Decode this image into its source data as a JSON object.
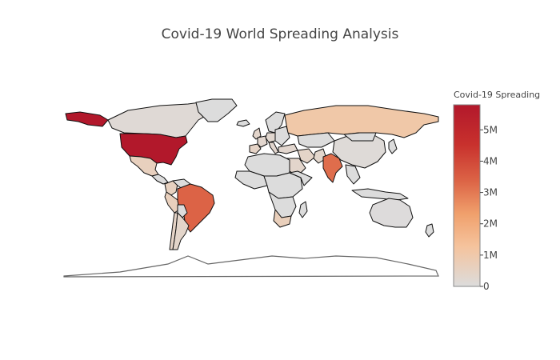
{
  "chart": {
    "title": "Covid-19 World Spreading Analysis"
  },
  "colorbar": {
    "title": "Covid-19 Spreading",
    "ticks": [
      {
        "label": "0",
        "value": 0
      },
      {
        "label": "1M",
        "value": 1000000
      },
      {
        "label": "2M",
        "value": 2000000
      },
      {
        "label": "3M",
        "value": 3000000
      },
      {
        "label": "4M",
        "value": 4000000
      },
      {
        "label": "5M",
        "value": 5000000
      }
    ],
    "scale": [
      "#dcdcdc",
      "#f5c39d",
      "#f0a06c",
      "#dc6446",
      "#c8312d",
      "#b2182b"
    ],
    "min": 0,
    "max": 5800000
  },
  "chart_data": {
    "type": "choropleth",
    "title": "Covid-19 World Spreading Analysis",
    "colorbar_title": "Covid-19 Spreading",
    "range": [
      0,
      5800000
    ],
    "locations": [
      {
        "name": "United States",
        "value": 5800000
      },
      {
        "name": "Brazil",
        "value": 3500000
      },
      {
        "name": "India",
        "value": 3300000
      },
      {
        "name": "Russia",
        "value": 950000
      },
      {
        "name": "South Africa",
        "value": 600000
      },
      {
        "name": "Peru",
        "value": 580000
      },
      {
        "name": "Mexico",
        "value": 560000
      },
      {
        "name": "Colombia",
        "value": 520000
      },
      {
        "name": "Chile",
        "value": 400000
      },
      {
        "name": "Spain",
        "value": 400000
      },
      {
        "name": "Iran",
        "value": 360000
      },
      {
        "name": "Argentina",
        "value": 330000
      },
      {
        "name": "United Kingdom",
        "value": 320000
      },
      {
        "name": "Saudi Arabia",
        "value": 310000
      },
      {
        "name": "Pakistan",
        "value": 290000
      },
      {
        "name": "Turkey",
        "value": 260000
      },
      {
        "name": "France",
        "value": 260000
      },
      {
        "name": "Italy",
        "value": 260000
      },
      {
        "name": "Germany",
        "value": 240000
      },
      {
        "name": "Canada",
        "value": 125000
      },
      {
        "name": "China",
        "value": 90000
      },
      {
        "name": "Australia",
        "value": 25000
      }
    ]
  }
}
